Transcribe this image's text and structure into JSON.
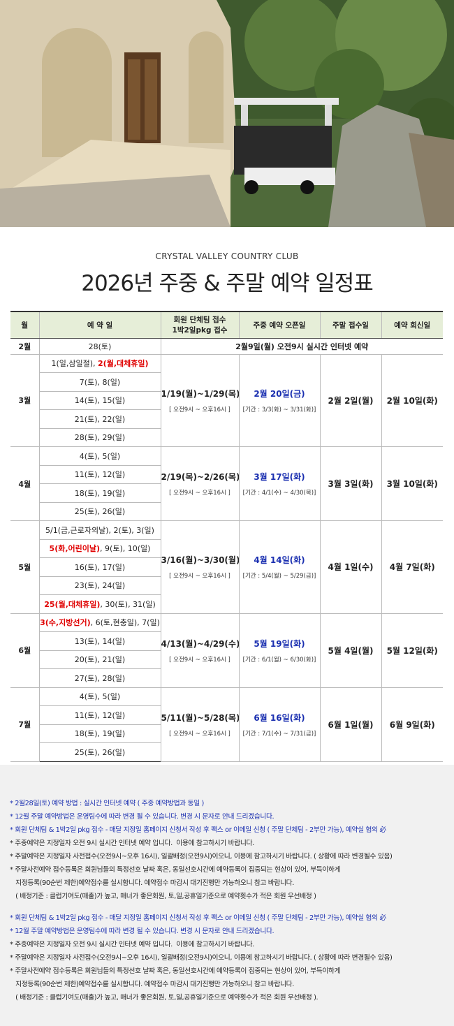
{
  "header": {
    "subtitle": "CRYSTAL VALLEY COUNTRY CLUB",
    "title": "2026년 주중 & 주말 예약 일정표"
  },
  "table": {
    "header": [
      [
        "월"
      ],
      [
        "예 약 일"
      ],
      [
        "회원 단체팀 접수",
        "1박2일pkg 접수"
      ],
      [
        "주중 예약 오픈일"
      ],
      [
        "주말 접수일"
      ],
      [
        "예약 회신일"
      ]
    ],
    "special_row": {
      "month": "2월",
      "date": "28(토)",
      "note": "2월9일(월) 오전9시  실시간 인터넷 예약"
    },
    "months": [
      {
        "month": "3월",
        "dates": [
          [
            {
              "text": "1(일,삼일절), "
            },
            {
              "text": "2(월,대체휴일)",
              "color": "#e00000"
            }
          ],
          [
            {
              "text": "7(토), 8(일)"
            }
          ],
          [
            {
              "text": "14(토), 15(일)"
            }
          ],
          [
            {
              "text": "21(토), 22(일)"
            }
          ],
          [
            {
              "text": "28(토), 29(일)"
            }
          ]
        ],
        "group": "1/19(월)~1/29(목)",
        "group_time": "[ 오전9시 ~ 오후16시 ]",
        "weekday_open": "2월 20일(금)",
        "weekday_period": "[기간 : 3/3(화) ~ 3/31(화)]",
        "weekend": "2월 2일(월)",
        "reply": "2월 10일(화)"
      },
      {
        "month": "4월",
        "dates": [
          [
            {
              "text": "4(토), 5(일)"
            }
          ],
          [
            {
              "text": "11(토), 12(일)"
            }
          ],
          [
            {
              "text": "18(토), 19(일)"
            }
          ],
          [
            {
              "text": "25(토), 26(일)"
            }
          ]
        ],
        "group": "2/19(목)~2/26(목)",
        "group_time": "[ 오전9시 ~ 오후16시 ]",
        "weekday_open": "3월 17일(화)",
        "weekday_period": "[기간 : 4/1(수) ~ 4/30(목)]",
        "weekend": "3월 3일(화)",
        "reply": "3월 10일(화)"
      },
      {
        "month": "5월",
        "dates": [
          [
            {
              "text": "5/1(금,근로자의날), 2(토), 3(일)"
            }
          ],
          [
            {
              "text": "5(화,어린이날)",
              "color": "#e00000"
            },
            {
              "text": ", 9(토), 10(일)"
            }
          ],
          [
            {
              "text": "16(토), 17(일)"
            }
          ],
          [
            {
              "text": "23(토), 24(일)"
            }
          ],
          [
            {
              "text": "25(월,대체휴일)",
              "color": "#e00000"
            },
            {
              "text": ", 30(토), 31(일)"
            }
          ]
        ],
        "group": "3/16(월)~3/30(월)",
        "group_time": "[ 오전9시 ~ 오후16시 ]",
        "weekday_open": "4월 14일(화)",
        "weekday_period": "[기간 : 5/4(월) ~ 5/29(금)]",
        "weekend": "4월 1일(수)",
        "reply": "4월 7일(화)"
      },
      {
        "month": "6월",
        "dates": [
          [
            {
              "text": "3(수,지방선거)",
              "color": "#e00000"
            },
            {
              "text": ", 6(토,현충일), 7(일)"
            }
          ],
          [
            {
              "text": "13(토), 14(일)"
            }
          ],
          [
            {
              "text": "20(토), 21(일)"
            }
          ],
          [
            {
              "text": "27(토), 28(일)"
            }
          ]
        ],
        "group": "4/13(월)~4/29(수)",
        "group_time": "[ 오전9시 ~ 오후16시 ]",
        "weekday_open": "5월 19일(화)",
        "weekday_period": "[기간 : 6/1(월) ~ 6/30(화)]",
        "weekend": "5월 4일(월)",
        "reply": "5월 12일(화)"
      },
      {
        "month": "7월",
        "dates": [
          [
            {
              "text": "4(토), 5(일)"
            }
          ],
          [
            {
              "text": "11(토), 12(일)"
            }
          ],
          [
            {
              "text": "18(토), 19(일)"
            }
          ],
          [
            {
              "text": "25(토), 26(일)"
            }
          ]
        ],
        "group": "5/11(월)~5/28(목)",
        "group_time": "[ 오전9시 ~ 오후16시 ]",
        "weekday_open": "6월 16일(화)",
        "weekday_period": "[기간 : 7/1(수) ~ 7/31(금)]",
        "weekend": "6월 1일(월)",
        "reply": "6월 9일(화)"
      }
    ]
  },
  "notes": [
    [
      {
        "text": "* 2월28일(토) 예약 방법 : 실시간 인터넷 예약 ( 주중 예약방법과 동일 )",
        "color": "#1a2fb0"
      },
      {
        "text": "* 12월 주말 예약방법은 운영팀수에 따라 변경 될 수 있습니다. 변경 시 문자로 안내 드리겠습니다.",
        "color": "#1a2fb0"
      },
      {
        "text": "* 회원 단체팀 & 1박2일 pkg 접수 - 매달 지정일 홈페이지 신청서 작성 후 팩스 or 이메일 신청 ( 주말 단체팀 - 2부만 가능), 예약실 협의 必",
        "color": "#1a2fb0"
      },
      {
        "text": "* 주중예약은 지정일자 오전 9시 실시간 인터넷 예약 입니다.  이용에 참고하시기 바랍니다."
      },
      {
        "text": "* 주말예약은 지정일자 사전접수(오전9시~오후 16시), 일괄배정(오전9시)이오니, 이용에 참고하시기 바랍니다. ( 상황에 따라 변경될수 있음)"
      },
      {
        "text": "* 주말사전예약 접수등록은 회원님들의 특정선호 날짜 혹은, 동일선호시간에 예약등록이 집중되는 현상이 있어, 부득이하게"
      },
      {
        "text": "   지정등록(90순번 제한)예약접수를 실시합니다. 예약접수 마감시 대기진행만 가능하오니 참고 바랍니다."
      },
      {
        "text": "   ( 배정기준 : 클럽기여도(매출)가 높고, 매너가 좋은회원, 토,일,공휴일기준으로 예약횟수가 적은 회원 우선배정 )"
      }
    ],
    [
      {
        "text": "* 회원 단체팀 & 1박2일 pkg 접수 - 매달 지정일 홈페이지 신청서 작성 후 팩스 or 이메일 신청 ( 주말 단체팀 - 2부만 가능), 예약실 협의 必",
        "color": "#1a2fb0"
      },
      {
        "text": "* 12월 주말 예약방법은 운영팀수에 따라 변경 될 수 있습니다. 변경 시 문자로 안내 드리겠습니다.",
        "color": "#1a2fb0"
      },
      {
        "text": "* 주중예약은 지정일자 오전 9시 실시간 인터넷 예약 입니다.  이용에 참고하시기 바랍니다."
      },
      {
        "text": "* 주말예약은 지정일자 사전접수(오전9시~오후 16시), 일괄배정(오전9시)이오니, 이용에 참고하시기 바랍니다. ( 상황에 따라 변경될수 있음)"
      },
      {
        "text": "* 주말사전예약 접수등록은 회원님들의 특정선호 날짜 혹은, 동일선호시간에 예약등록이 집중되는 현상이 있어, 부득이하게"
      },
      {
        "text": "   지정등록(90순번 제한)예약접수를 실시합니다. 예약접수 마감시 대기진행만 가능하오니 참고 바랍니다."
      },
      {
        "text": "   ( 배정기준 : 클럽기여도(매출)가 높고, 매너가 좋은회원, 토,일,공휴일기준으로 예약횟수가 적은 회원 우선배정 )."
      }
    ]
  ]
}
